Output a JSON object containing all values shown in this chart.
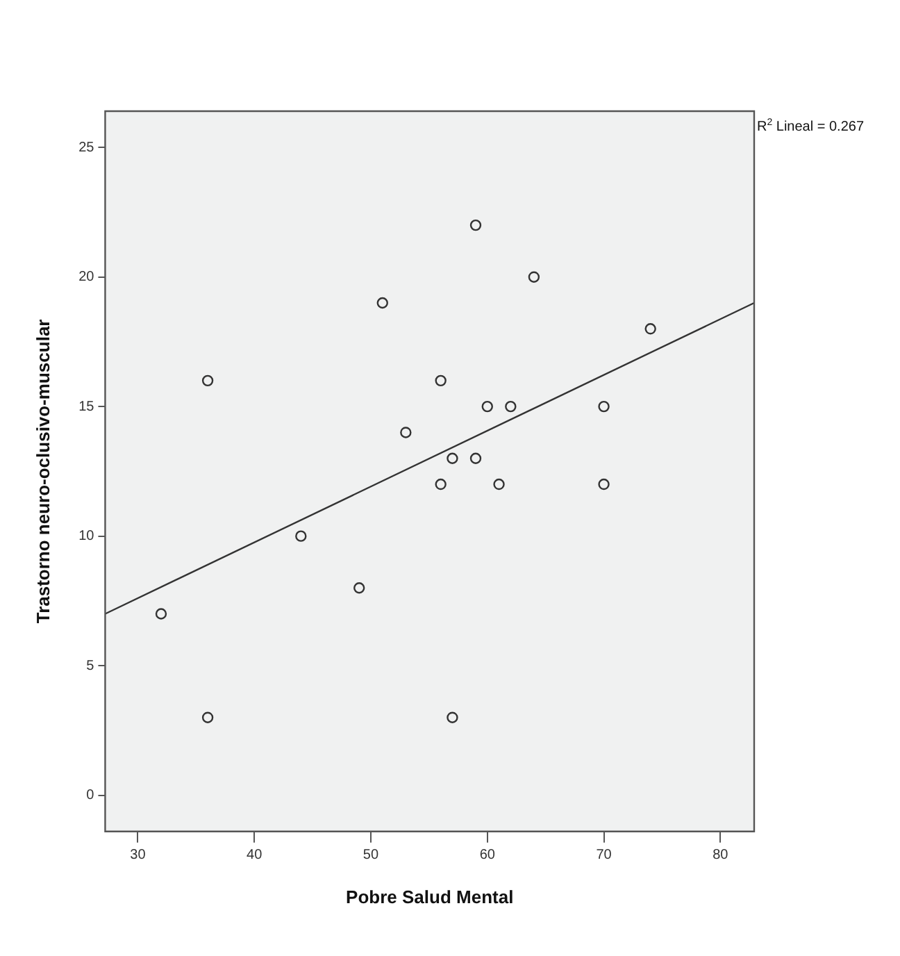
{
  "chart_data": {
    "type": "scatter",
    "xlabel": "Pobre Salud Mental",
    "ylabel": "Trastorno neuro-oclusivo-muscular",
    "annotations": [
      "R$^{2}$ Lineal = 0.267"
    ],
    "xlim": [
      27.2,
      82.9
    ],
    "xticks": [
      30,
      40,
      50,
      60,
      70,
      80
    ],
    "ylim": [
      -1.4,
      26.4
    ],
    "yticks": [
      0,
      5,
      10,
      15,
      20,
      25
    ],
    "grid": false,
    "legend": false,
    "marker": "circle",
    "series": [
      {
        "type": "scatter",
        "color": "#333333",
        "x": [
          32,
          36,
          36,
          44,
          49,
          51,
          53,
          56,
          56,
          57,
          57,
          59,
          59,
          60,
          61,
          62,
          64,
          70,
          70,
          74
        ],
        "values": [
          7,
          16,
          3,
          10,
          8,
          19,
          14,
          16,
          12,
          13,
          3,
          22,
          13,
          15,
          12,
          15,
          20,
          15,
          12,
          18
        ]
      },
      {
        "type": "line",
        "color": "#333333",
        "marker": "none",
        "line_style": "solid",
        "x": [
          27.2,
          82.9
        ],
        "values": [
          7,
          19
        ]
      }
    ]
  }
}
